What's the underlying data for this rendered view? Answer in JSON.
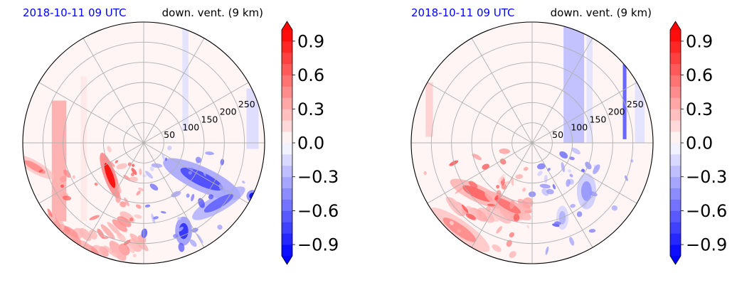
{
  "chart_data": [
    {
      "type": "heatmap",
      "projection": "polar",
      "title_left": "2018-10-11 09 UTC",
      "title_right": "down. vent. (9 km)",
      "radial_ticks": [
        50,
        100,
        150,
        200,
        250
      ],
      "r_max": 300,
      "angular_gridlines_deg": [
        0,
        30,
        60,
        90,
        120,
        150,
        180,
        210,
        240,
        270,
        300,
        330
      ],
      "grid": true,
      "colorbar": {
        "min": -1.0,
        "max": 1.0,
        "levels": 20,
        "extend": "both",
        "ticks": [
          0.9,
          0.6,
          0.3,
          0.0,
          -0.3,
          -0.6,
          -0.9
        ],
        "tick_labels": [
          "0.9",
          "0.6",
          "0.3",
          "0.0",
          "−0.3",
          "−0.6",
          "−0.9"
        ],
        "cmap": "bwr"
      },
      "colors": {
        "title_left": "#0000ff",
        "low": "#0000ff",
        "mid": "#ffffff",
        "high": "#ff0000"
      }
    },
    {
      "type": "heatmap",
      "projection": "polar",
      "title_left": "2018-10-11 09 UTC",
      "title_right": "down. vent. (9 km)",
      "radial_ticks": [
        50,
        100,
        150,
        200,
        250
      ],
      "r_max": 300,
      "angular_gridlines_deg": [
        0,
        30,
        60,
        90,
        120,
        150,
        180,
        210,
        240,
        270,
        300,
        330
      ],
      "grid": true,
      "colorbar": {
        "min": -1.0,
        "max": 1.0,
        "levels": 20,
        "extend": "both",
        "ticks": [
          0.9,
          0.6,
          0.3,
          0.0,
          -0.3,
          -0.6,
          -0.9
        ],
        "tick_labels": [
          "0.9",
          "0.6",
          "0.3",
          "0.0",
          "−0.3",
          "−0.6",
          "−0.9"
        ],
        "cmap": "bwr"
      },
      "colors": {
        "title_left": "#0000ff",
        "low": "#0000ff",
        "mid": "#ffffff",
        "high": "#ff0000"
      }
    }
  ]
}
